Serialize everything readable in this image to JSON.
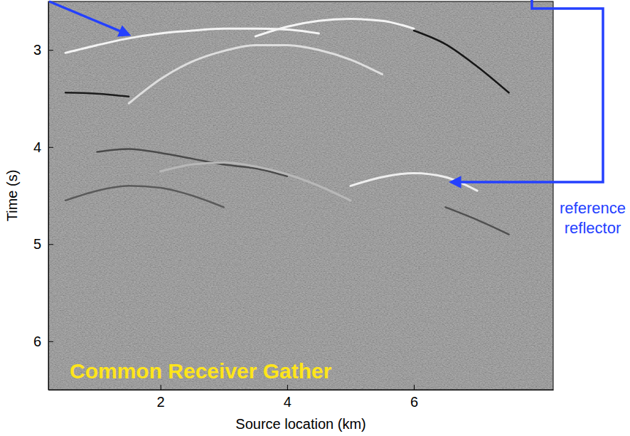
{
  "chart_data": {
    "type": "line",
    "title": "Common Receiver Gather",
    "x_label": "Source location (km)",
    "y_label": "Time (s)",
    "annotations": [
      {
        "text": "reference reflector"
      }
    ],
    "xlim": [
      0.23,
      8.2
    ],
    "xticks": [
      2,
      4,
      6
    ],
    "ylim": [
      6.5,
      2.5
    ],
    "yticks": [
      3,
      4,
      5,
      6
    ],
    "grid": false,
    "x": [
      0.5,
      1.0,
      1.5,
      2.0,
      2.5,
      3.0,
      3.5,
      4.0,
      4.5,
      5.0,
      5.5,
      6.0,
      6.5,
      7.0,
      7.5
    ],
    "series": [
      {
        "color": "#f4f4f4",
        "values": [
          3.03,
          2.95,
          2.88,
          2.83,
          2.8,
          2.78,
          2.78,
          2.79,
          2.83,
          null,
          null,
          null,
          null,
          null,
          null
        ]
      },
      {
        "color": "#f4f4f4",
        "values": [
          null,
          null,
          null,
          null,
          null,
          null,
          2.86,
          2.76,
          2.7,
          2.68,
          2.7,
          2.78,
          null,
          null,
          null
        ]
      },
      {
        "color": "#161616",
        "values": [
          null,
          null,
          null,
          null,
          null,
          null,
          null,
          null,
          null,
          null,
          null,
          2.8,
          2.94,
          3.17,
          3.44
        ]
      },
      {
        "color": "#dedede",
        "values": [
          null,
          null,
          3.55,
          3.3,
          3.12,
          3.01,
          2.95,
          2.95,
          3.0,
          3.1,
          3.25,
          null,
          null,
          null,
          null
        ]
      },
      {
        "color": "#1c1c1c",
        "values": [
          3.44,
          3.45,
          3.48,
          null,
          null,
          null,
          null,
          null,
          null,
          null,
          null,
          null,
          null,
          null,
          null
        ]
      },
      {
        "color": "#eeeeee",
        "values": [
          null,
          null,
          null,
          null,
          null,
          null,
          null,
          null,
          null,
          4.4,
          4.31,
          4.27,
          4.31,
          4.45,
          null
        ]
      },
      {
        "color": "#4a4a4a",
        "values": [
          null,
          4.05,
          4.02,
          4.06,
          4.12,
          4.18,
          4.22,
          4.3,
          null,
          null,
          null,
          null,
          null,
          null,
          null
        ]
      },
      {
        "color": "#b8b8b8",
        "values": [
          null,
          null,
          null,
          4.25,
          4.18,
          4.16,
          4.2,
          4.28,
          4.4,
          4.55,
          null,
          null,
          null,
          null,
          null
        ]
      },
      {
        "color": "#5a5a5a",
        "values": [
          4.55,
          4.45,
          4.4,
          4.42,
          4.5,
          4.62,
          null,
          null,
          null,
          null,
          null,
          null,
          null,
          null,
          null
        ]
      },
      {
        "color": "#505050",
        "values": [
          null,
          null,
          null,
          null,
          null,
          null,
          null,
          null,
          null,
          null,
          null,
          null,
          4.62,
          4.75,
          4.9
        ]
      }
    ]
  }
}
